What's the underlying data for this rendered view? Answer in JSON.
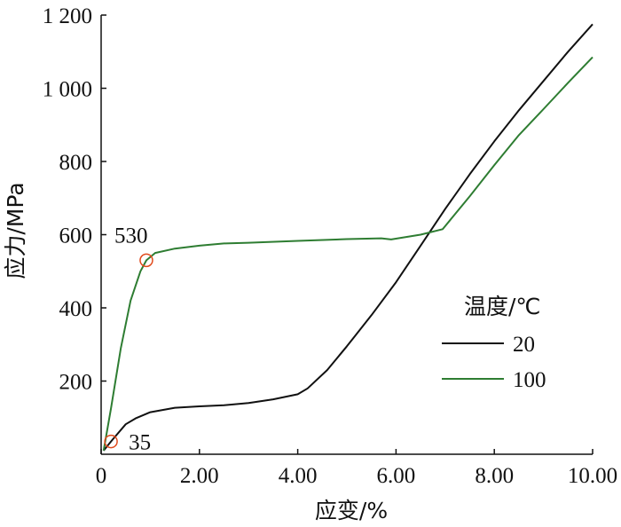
{
  "chart_data": {
    "type": "line",
    "xlabel": "应变/%",
    "ylabel": "应力/MPa",
    "xlim": [
      0,
      10
    ],
    "ylim": [
      0,
      1200
    ],
    "x_ticks": [
      0,
      2,
      4,
      6,
      8,
      10
    ],
    "x_tick_labels": [
      "0",
      "2.00",
      "4.00",
      "6.00",
      "8.00",
      "10.00"
    ],
    "y_ticks": [
      200,
      400,
      600,
      800,
      1000,
      1200
    ],
    "y_tick_labels": [
      "200",
      "400",
      "600",
      "800",
      "1 000",
      "1 200"
    ],
    "legend": {
      "title": "温度/℃",
      "position": "right"
    },
    "series": [
      {
        "name": "20",
        "color": "#111111",
        "points": [
          [
            0.05,
            10
          ],
          [
            0.2,
            35
          ],
          [
            0.5,
            82
          ],
          [
            0.7,
            98
          ],
          [
            1.0,
            115
          ],
          [
            1.5,
            127
          ],
          [
            2.0,
            131
          ],
          [
            2.5,
            134
          ],
          [
            3.0,
            140
          ],
          [
            3.5,
            150
          ],
          [
            4.0,
            164
          ],
          [
            4.2,
            180
          ],
          [
            4.6,
            230
          ],
          [
            5.0,
            295
          ],
          [
            5.5,
            380
          ],
          [
            6.0,
            470
          ],
          [
            6.5,
            570
          ],
          [
            7.0,
            670
          ],
          [
            7.5,
            765
          ],
          [
            8.0,
            855
          ],
          [
            8.5,
            940
          ],
          [
            9.0,
            1020
          ],
          [
            9.5,
            1100
          ],
          [
            10.0,
            1175
          ]
        ]
      },
      {
        "name": "100",
        "color": "#2e7d32",
        "points": [
          [
            0.05,
            10
          ],
          [
            0.2,
            125
          ],
          [
            0.4,
            290
          ],
          [
            0.6,
            420
          ],
          [
            0.8,
            500
          ],
          [
            0.92,
            530
          ],
          [
            1.1,
            550
          ],
          [
            1.5,
            562
          ],
          [
            2.0,
            570
          ],
          [
            2.5,
            576
          ],
          [
            3.0,
            578
          ],
          [
            4.0,
            583
          ],
          [
            5.0,
            588
          ],
          [
            5.7,
            590
          ],
          [
            5.9,
            587
          ],
          [
            6.5,
            600
          ],
          [
            6.95,
            615
          ],
          [
            7.5,
            705
          ],
          [
            8.0,
            790
          ],
          [
            8.5,
            872
          ],
          [
            9.0,
            943
          ],
          [
            9.5,
            1015
          ],
          [
            10.0,
            1085
          ]
        ]
      }
    ],
    "annotations": [
      {
        "label": "530",
        "x": 0.92,
        "y": 530,
        "marker_color": "#e14a1c"
      },
      {
        "label": "35",
        "x": 0.2,
        "y": 35,
        "marker_color": "#e14a1c"
      }
    ]
  }
}
